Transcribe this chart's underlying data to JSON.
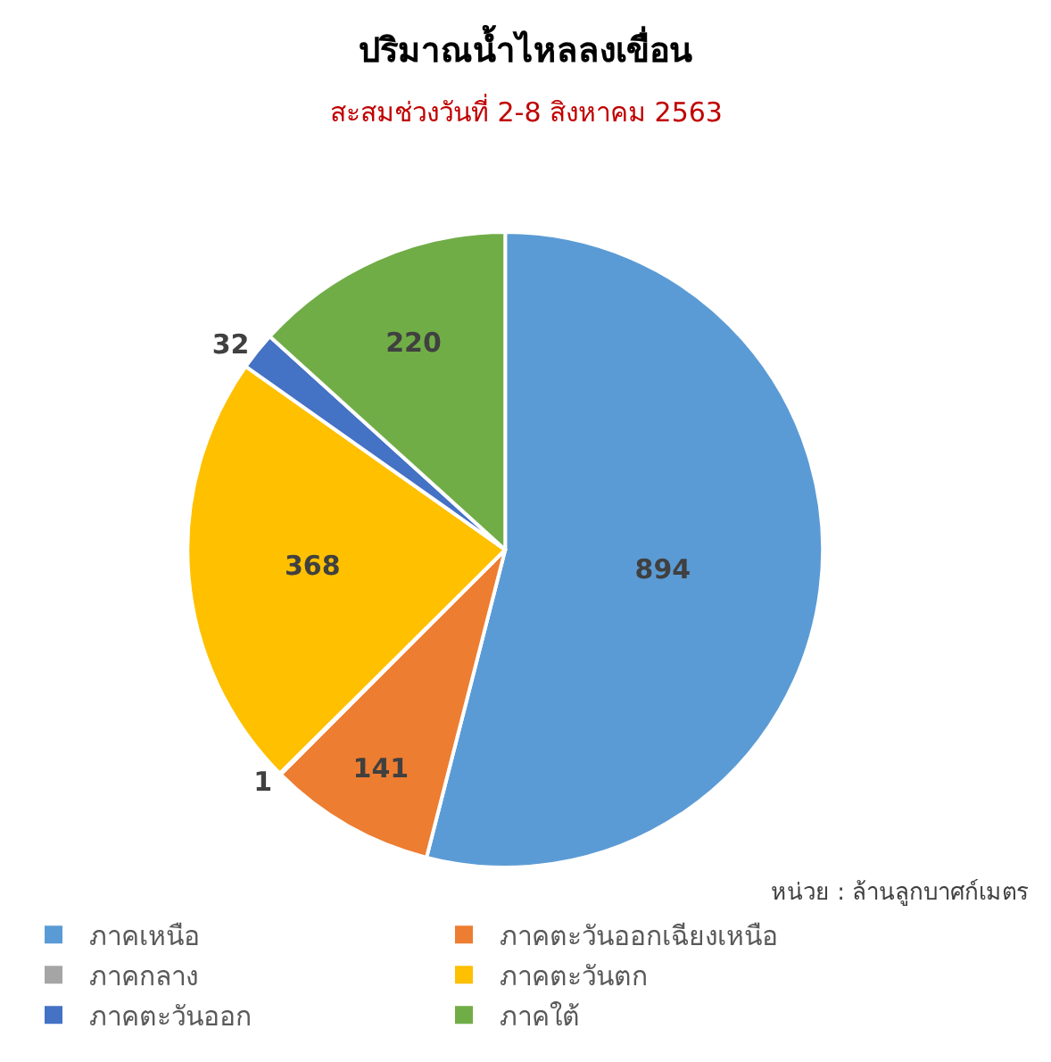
{
  "chart_data": {
    "type": "pie",
    "title": "ปริมาณน้ำไหลลงเขื่อน",
    "subtitle": "สะสมช่วงวันที่ 2-8 สิงหาคม 2563",
    "categories": [
      "ภาคเหนือ",
      "ภาคตะวันออกเฉียงเหนือ",
      "ภาคกลาง",
      "ภาคตะวันตก",
      "ภาคตะวันออก",
      "ภาคใต้"
    ],
    "values": [
      894,
      141,
      1,
      368,
      32,
      220
    ],
    "colors": [
      "#5b9bd5",
      "#ed7d31",
      "#a5a5a5",
      "#ffc000",
      "#4472c4",
      "#70ad47"
    ],
    "data_labels": true,
    "legend": "bottom",
    "annotations": [
      "หน่วย : ล้านลูกบาศก์เมตร"
    ]
  }
}
